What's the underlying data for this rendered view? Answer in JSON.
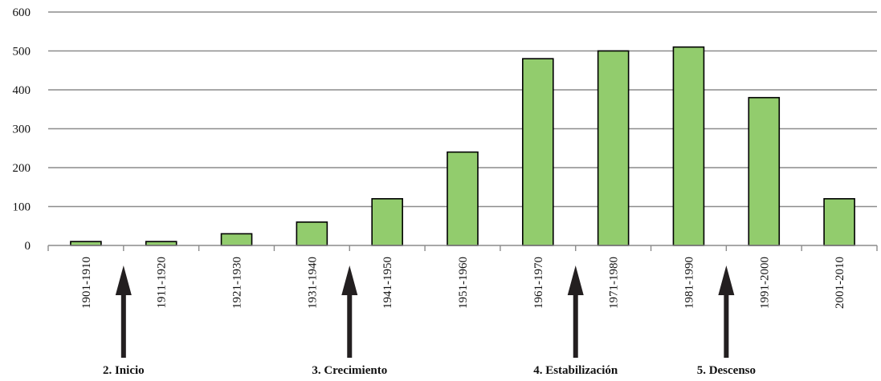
{
  "chart_data": {
    "type": "bar",
    "title": "",
    "xlabel": "",
    "ylabel": "",
    "categories": [
      "1901-1910",
      "1911-1920",
      "1921-1930",
      "1931-1940",
      "1941-1950",
      "1951-1960",
      "1961-1970",
      "1971-1980",
      "1981-1990",
      "1991-2000",
      "2001-2010"
    ],
    "values": [
      10,
      10,
      30,
      60,
      120,
      240,
      480,
      500,
      510,
      380,
      120
    ],
    "ylim": [
      0,
      600
    ],
    "yticks": [
      0,
      100,
      200,
      300,
      400,
      500,
      600
    ],
    "grid": true,
    "legend": "none",
    "bar_color": "#92cc6d",
    "bar_edge_color": "#000000",
    "annotations": [
      {
        "label": "2. Inicio",
        "between": [
          "1901-1910",
          "1911-1920"
        ]
      },
      {
        "label": "3. Crecimiento",
        "between": [
          "1931-1940",
          "1941-1950"
        ]
      },
      {
        "label": "4. Estabilización",
        "between": [
          "1961-1970",
          "1971-1980"
        ]
      },
      {
        "label": "5. Descenso",
        "between": [
          "1981-1990",
          "1991-2000"
        ]
      }
    ]
  }
}
